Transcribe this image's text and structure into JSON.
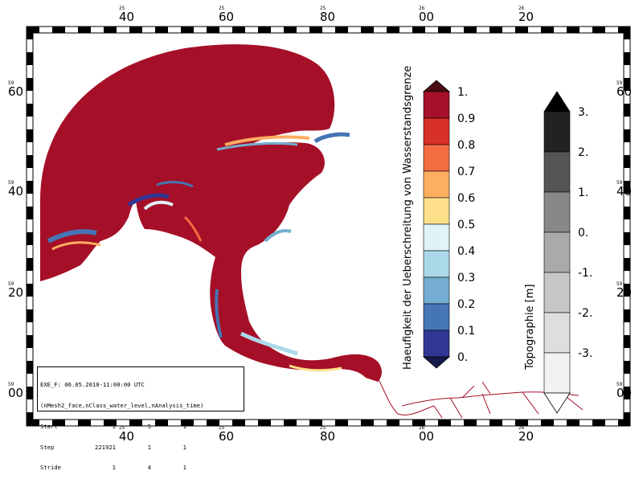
{
  "map": {
    "colorbar_main": {
      "title": "Haeufigkeit der Ueberschreitung von Wasserstandsgrenze",
      "labels": [
        "1.",
        "0.9",
        "0.8",
        "0.7",
        "0.6",
        "0.5",
        "0.4",
        "0.3",
        "0.2",
        "0.1",
        "0."
      ],
      "colors": [
        "#a50f27",
        "#d73027",
        "#f46d43",
        "#fdae61",
        "#fee08b",
        "#e0f3f8",
        "#abd9e9",
        "#74add1",
        "#4575b4",
        "#313695"
      ],
      "over_color": "#4a0b12",
      "under_color": "#141a4a"
    },
    "colorbar_topo": {
      "title": "Topographie [m]",
      "labels": [
        "3.",
        "2.",
        "1.",
        "0.",
        "-1.",
        "-2.",
        "-3."
      ],
      "colors": [
        "#222222",
        "#555555",
        "#888888",
        "#aaaaaa",
        "#c6c6c6",
        "#dedede",
        "#f2f2f2"
      ],
      "over_color": "#000000",
      "under_color": "#ffffff"
    },
    "ticks_top": [
      {
        "small": "25",
        "big": "40"
      },
      {
        "small": "25",
        "big": "60"
      },
      {
        "small": "25",
        "big": "80"
      },
      {
        "small": "26",
        "big": "00"
      },
      {
        "small": "26",
        "big": "20"
      }
    ],
    "ticks_bottom": [
      {
        "small": "25",
        "big": "40"
      },
      {
        "small": "25",
        "big": "60"
      },
      {
        "small": "25",
        "big": "80"
      },
      {
        "small": "26",
        "big": "00"
      },
      {
        "small": "26",
        "big": "20"
      }
    ],
    "ticks_left": [
      {
        "small": "59",
        "big": "60"
      },
      {
        "small": "59",
        "big": "40"
      },
      {
        "small": "59",
        "big": "20"
      },
      {
        "small": "59",
        "big": "00"
      }
    ],
    "ticks_right": [
      {
        "small": "59",
        "big": "60"
      },
      {
        "small": "59",
        "big": "40"
      },
      {
        "small": "59",
        "big": "20"
      },
      {
        "small": "59",
        "big": "00"
      }
    ],
    "colors": {
      "land_fill": "#a50f27",
      "frame": "#000000"
    }
  },
  "infobox": {
    "line1": "EXE_F: 06.05.2010-11:00:00 UTC",
    "line2": "(nMesh2_face,nClass_water_level,nAnalysis_time)",
    "rows": [
      {
        "label": "Start",
        "a": "1",
        "b": "5",
        "c": "1"
      },
      {
        "label": "Step",
        "a": "221921",
        "b": "1",
        "c": "1"
      },
      {
        "label": "Stride",
        "a": "1",
        "b": "4",
        "c": "1"
      }
    ]
  }
}
